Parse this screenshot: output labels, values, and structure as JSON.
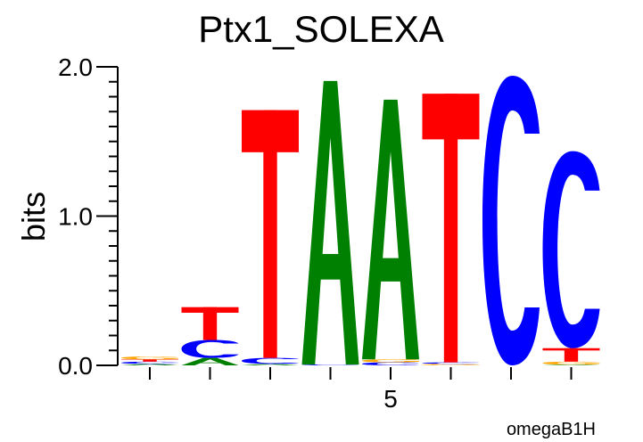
{
  "chart_data": {
    "type": "sequence-logo",
    "title": "Ptx1_SOLEXA",
    "ylabel": "bits",
    "xlabel": "",
    "ylim": [
      0,
      2.0
    ],
    "y_ticks": [
      {
        "value": 0.0,
        "label": "0.0"
      },
      {
        "value": 1.0,
        "label": "1.0"
      },
      {
        "value": 2.0,
        "label": "2.0"
      }
    ],
    "x_ticks": [
      {
        "position": 5,
        "label": "5"
      }
    ],
    "positions": [
      1,
      2,
      3,
      4,
      5,
      6,
      7,
      8
    ],
    "colors": {
      "A": "#008000",
      "C": "#0000ff",
      "G": "#ffa500",
      "T": "#ff0000"
    },
    "columns": [
      [
        {
          "base": "A",
          "bits": 0.01
        },
        {
          "base": "C",
          "bits": 0.015
        },
        {
          "base": "T",
          "bits": 0.015
        },
        {
          "base": "G",
          "bits": 0.02
        }
      ],
      [
        {
          "base": "A",
          "bits": 0.05
        },
        {
          "base": "C",
          "bits": 0.12
        },
        {
          "base": "T",
          "bits": 0.22
        }
      ],
      [
        {
          "base": "A",
          "bits": 0.01
        },
        {
          "base": "C",
          "bits": 0.04
        },
        {
          "base": "T",
          "bits": 1.66
        }
      ],
      [
        {
          "base": "C",
          "bits": 0.005
        },
        {
          "base": "A",
          "bits": 1.9
        }
      ],
      [
        {
          "base": "C",
          "bits": 0.02
        },
        {
          "base": "G",
          "bits": 0.02
        },
        {
          "base": "A",
          "bits": 1.74
        }
      ],
      [
        {
          "base": "G",
          "bits": 0.01
        },
        {
          "base": "C",
          "bits": 0.01
        },
        {
          "base": "T",
          "bits": 1.8
        }
      ],
      [
        {
          "base": "C",
          "bits": 1.94
        }
      ],
      [
        {
          "base": "A",
          "bits": 0.005
        },
        {
          "base": "G",
          "bits": 0.02
        },
        {
          "base": "T",
          "bits": 0.09
        },
        {
          "base": "C",
          "bits": 1.32
        }
      ]
    ]
  },
  "footer": {
    "credit": "omegaB1H"
  }
}
